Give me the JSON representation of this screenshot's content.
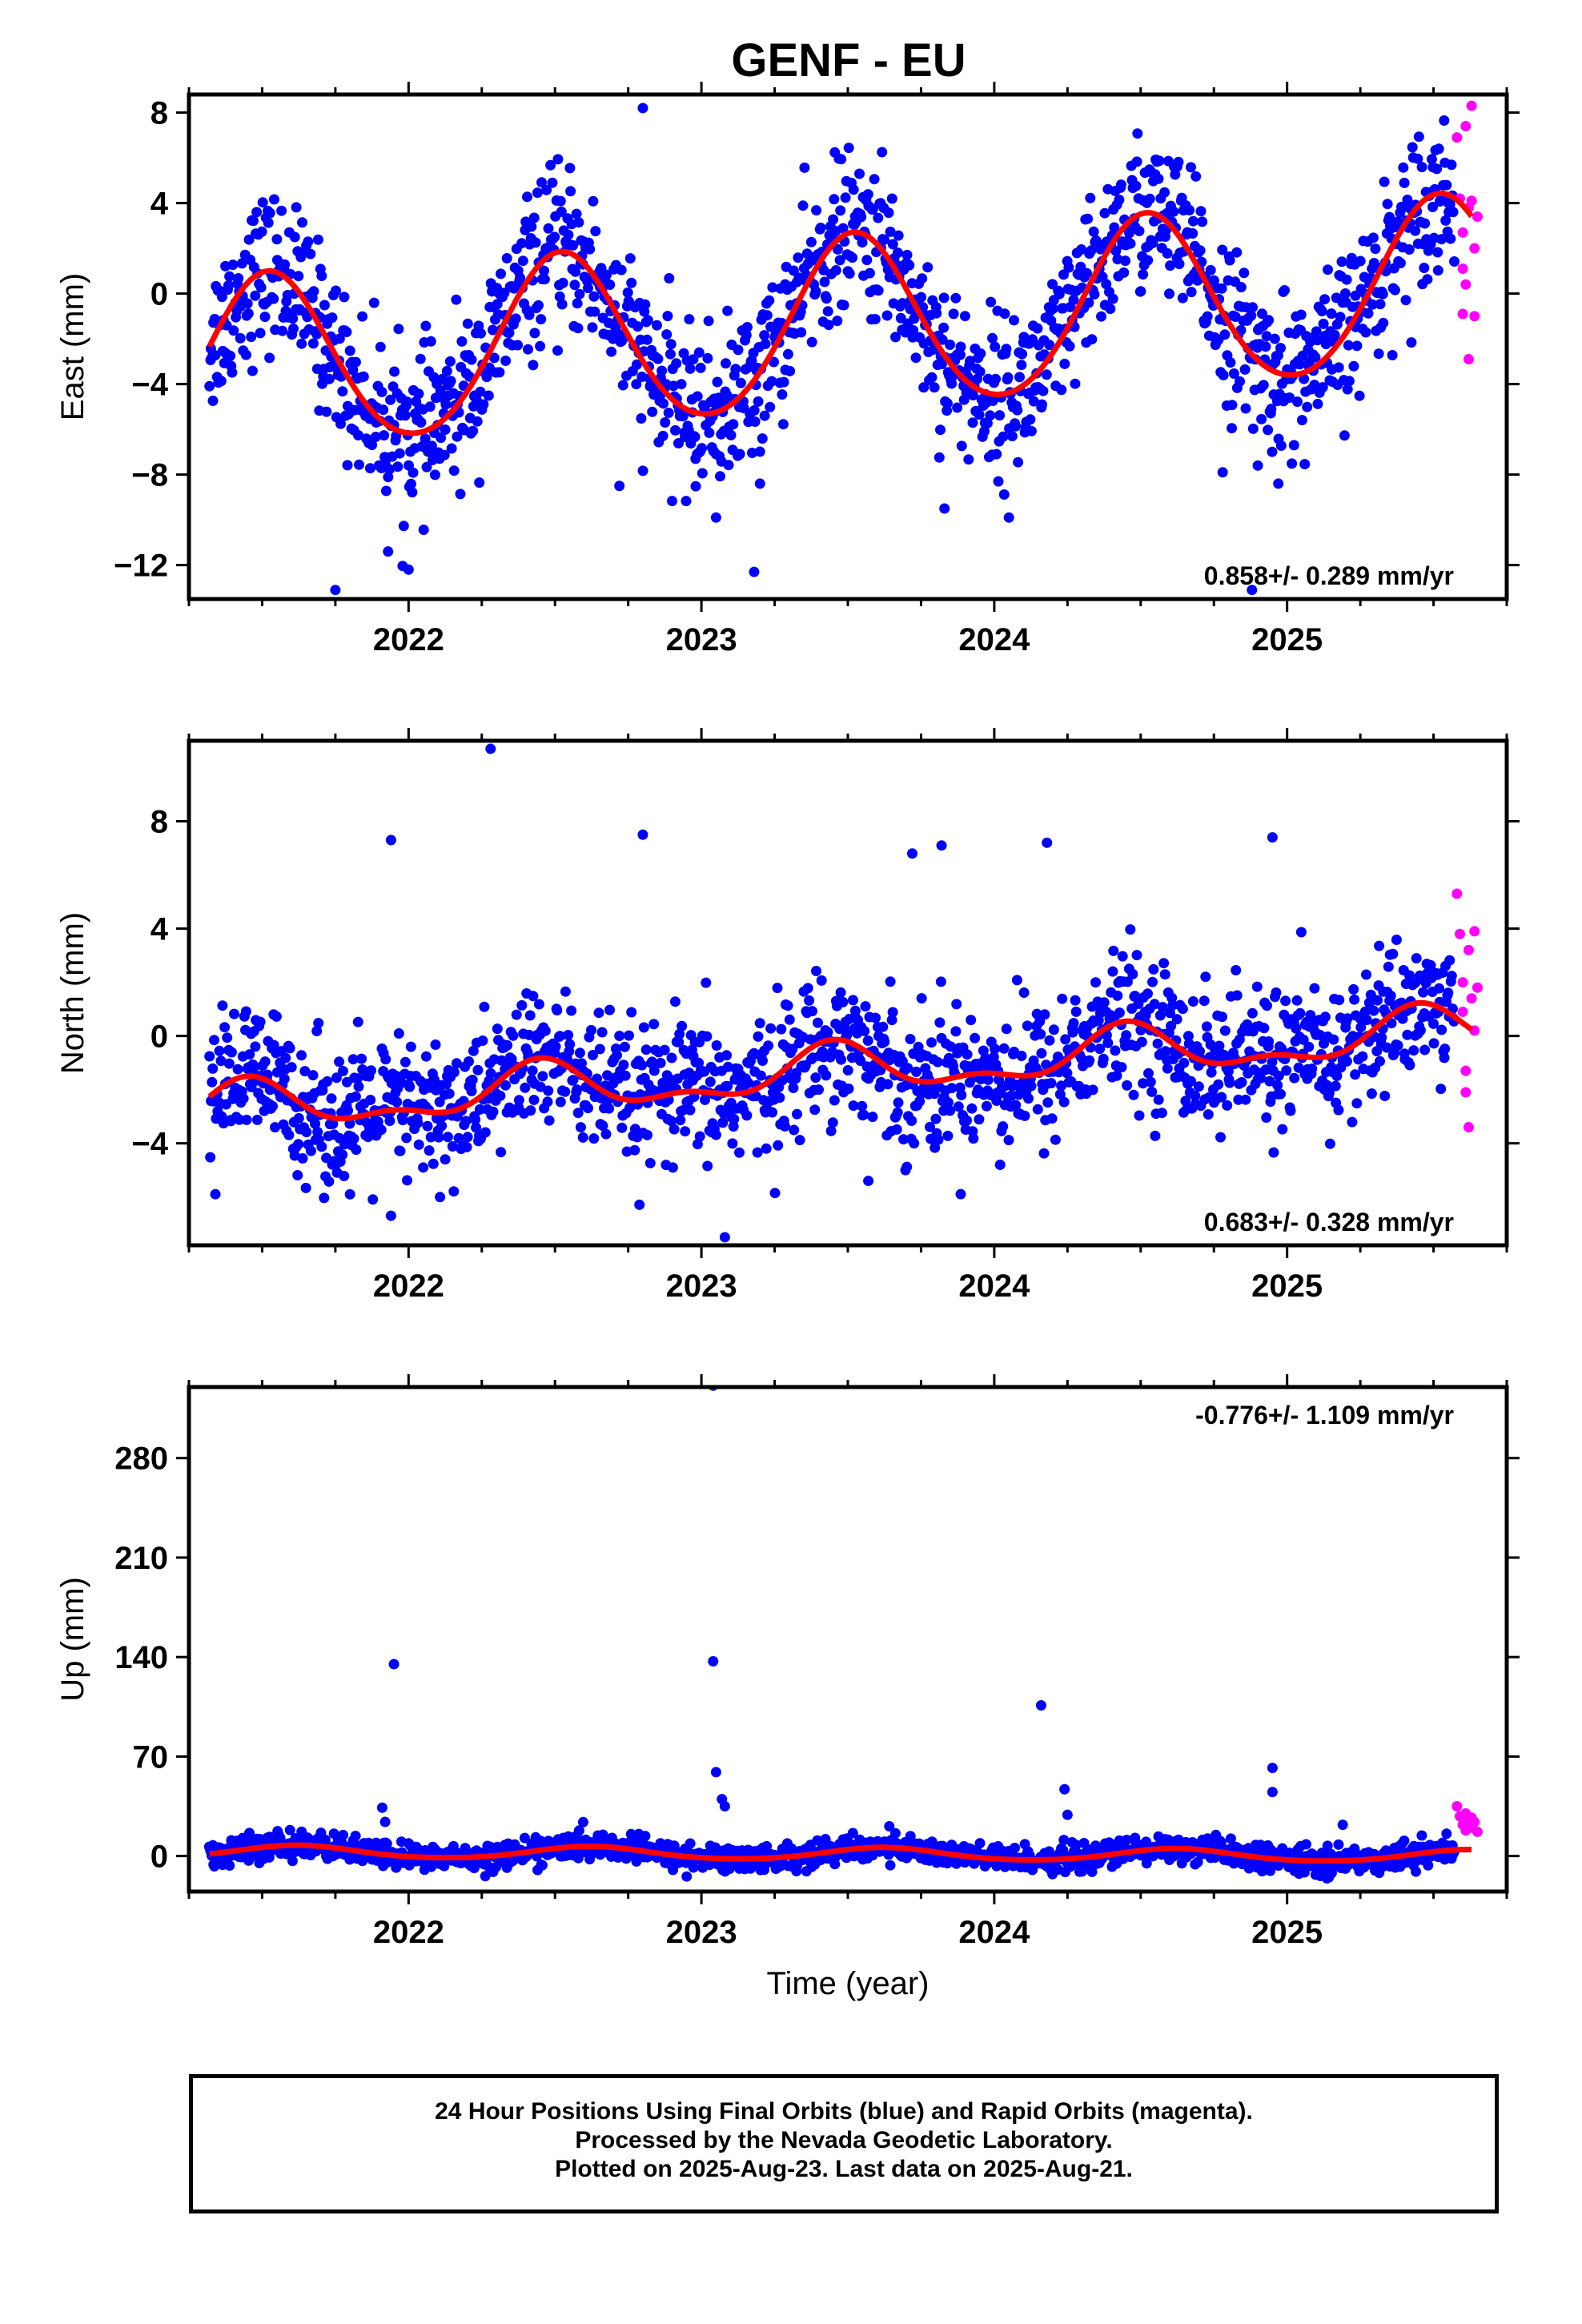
{
  "title": "GENF - EU",
  "x_axis_label": "Time (year)",
  "footer_lines": [
    "24 Hour Positions Using Final Orbits (blue) and Rapid Orbits (magenta).",
    "Processed by the Nevada Geodetic Laboratory.",
    "Plotted on 2025-Aug-23. Last data on 2025-Aug-21."
  ],
  "colors": {
    "final_orbits": "#0000ff",
    "rapid_orbits": "#ff00ff",
    "model_fit": "#ff0000",
    "frame": "#000000"
  },
  "chart_data": [
    {
      "type": "scatter",
      "component": "East",
      "ylabel": "East (mm)",
      "xlim": [
        2021.25,
        2025.75
      ],
      "ylim": [
        -13.5,
        8.8
      ],
      "yticks": [
        -12,
        -8,
        -4,
        0,
        4,
        8
      ],
      "xticks": [
        2022,
        2023,
        2024,
        2025
      ],
      "rate_text": "0.858+/- 0.289 mm/yr",
      "rate_position": "bottom-right",
      "model": {
        "trend_mm_per_yr": 0.858,
        "offset_mm": -1.4,
        "annual_amp_mm": 3.8,
        "annual_peak_frac": 0.52,
        "semiannual_amp_mm": 0.3
      },
      "scatter_noise_mm": 1.7,
      "fit_range": [
        2021.32,
        2025.63
      ],
      "final_orbits_range": [
        2021.32,
        2025.57
      ],
      "rapid_orbits": [
        [
          2025.58,
          6.9
        ],
        [
          2025.59,
          4.2
        ],
        [
          2025.6,
          2.7
        ],
        [
          2025.6,
          1.1
        ],
        [
          2025.6,
          -0.9
        ],
        [
          2025.61,
          7.4
        ],
        [
          2025.62,
          3.8
        ],
        [
          2025.62,
          -2.9
        ],
        [
          2025.63,
          8.3
        ],
        [
          2025.63,
          4.1
        ],
        [
          2025.64,
          2.0
        ],
        [
          2025.64,
          -1.0
        ],
        [
          2025.65,
          3.4
        ],
        [
          2025.61,
          0.4
        ]
      ],
      "outliers": [
        [
          2021.75,
          -13.1
        ],
        [
          2021.93,
          -11.4
        ],
        [
          2022.0,
          -12.2
        ],
        [
          2022.8,
          8.2
        ],
        [
          2022.72,
          -8.5
        ],
        [
          2023.05,
          -9.9
        ],
        [
          2023.2,
          -8.4
        ],
        [
          2023.18,
          -12.3
        ],
        [
          2023.83,
          -9.5
        ],
        [
          2024.05,
          -9.9
        ],
        [
          2024.78,
          -7.9
        ],
        [
          2024.9,
          -7.6
        ],
        [
          2024.97,
          -8.4
        ],
        [
          2024.88,
          -13.1
        ],
        [
          2022.98,
          -7.3
        ]
      ]
    },
    {
      "type": "scatter",
      "component": "North",
      "ylabel": "North (mm)",
      "xlim": [
        2021.25,
        2025.75
      ],
      "ylim": [
        -7.8,
        11.0
      ],
      "yticks": [
        -4,
        0,
        4,
        8
      ],
      "xticks": [
        2022,
        2023,
        2024,
        2025
      ],
      "rate_text": "0.683+/- 0.328 mm/yr",
      "rate_position": "bottom-right",
      "model": {
        "trend_mm_per_yr": 0.683,
        "offset_mm": -1.3,
        "annual_amp_mm": 0.8,
        "annual_peak_frac": 0.45,
        "semiannual_amp_mm": 0.4
      },
      "scatter_noise_mm": 1.3,
      "fit_range": [
        2021.32,
        2025.63
      ],
      "final_orbits_range": [
        2021.32,
        2025.57
      ],
      "rapid_orbits": [
        [
          2025.58,
          5.3
        ],
        [
          2025.59,
          3.8
        ],
        [
          2025.6,
          2.0
        ],
        [
          2025.6,
          0.9
        ],
        [
          2025.61,
          -1.3
        ],
        [
          2025.61,
          -2.1
        ],
        [
          2025.62,
          -3.4
        ],
        [
          2025.62,
          3.2
        ],
        [
          2025.63,
          1.4
        ],
        [
          2025.64,
          0.2
        ],
        [
          2025.64,
          3.9
        ],
        [
          2025.65,
          1.8
        ]
      ],
      "outliers": [
        [
          2022.28,
          10.7
        ],
        [
          2021.94,
          7.3
        ],
        [
          2022.8,
          7.5
        ],
        [
          2023.72,
          6.8
        ],
        [
          2023.82,
          7.1
        ],
        [
          2024.18,
          7.2
        ],
        [
          2024.95,
          7.4
        ],
        [
          2023.08,
          -7.5
        ],
        [
          2021.94,
          -6.7
        ],
        [
          2021.8,
          -5.9
        ],
        [
          2023.57,
          -5.4
        ],
        [
          2024.02,
          -4.8
        ],
        [
          2022.05,
          -4.9
        ]
      ]
    },
    {
      "type": "scatter",
      "component": "Up",
      "ylabel": "Up (mm)",
      "xlim": [
        2021.25,
        2025.75
      ],
      "ylim": [
        -25,
        330
      ],
      "yticks": [
        0,
        70,
        140,
        210,
        280
      ],
      "xticks": [
        2022,
        2023,
        2024,
        2025
      ],
      "rate_text": "-0.776+/- 1.109 mm/yr",
      "rate_position": "top-right",
      "model": {
        "trend_mm_per_yr": -0.776,
        "offset_mm": 1.5,
        "annual_amp_mm": 4.2,
        "annual_peak_frac": 0.62,
        "semiannual_amp_mm": 0.5
      },
      "scatter_noise_mm": 4.5,
      "fit_range": [
        2021.32,
        2025.63
      ],
      "final_orbits_range": [
        2021.32,
        2025.57
      ],
      "rapid_orbits": [
        [
          2025.58,
          35
        ],
        [
          2025.59,
          28
        ],
        [
          2025.6,
          22
        ],
        [
          2025.61,
          30
        ],
        [
          2025.61,
          18
        ],
        [
          2025.62,
          25
        ],
        [
          2025.63,
          20
        ],
        [
          2025.63,
          27
        ],
        [
          2025.64,
          24
        ],
        [
          2025.65,
          17
        ]
      ],
      "outliers": [
        [
          2023.04,
          331
        ],
        [
          2023.04,
          137
        ],
        [
          2021.95,
          135
        ],
        [
          2024.16,
          106
        ],
        [
          2024.95,
          62
        ],
        [
          2023.05,
          59
        ],
        [
          2024.95,
          45
        ],
        [
          2023.07,
          40
        ],
        [
          2023.08,
          35
        ],
        [
          2024.24,
          47
        ],
        [
          2021.91,
          34
        ],
        [
          2021.92,
          24
        ],
        [
          2024.25,
          29
        ],
        [
          2025.19,
          22
        ]
      ]
    }
  ]
}
